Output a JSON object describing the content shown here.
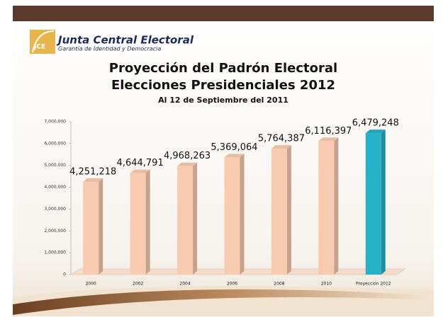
{
  "header": {
    "logo": "JCE",
    "title": "Junta Central Electoral",
    "subtitle": "Garantía de Identidad y Democracia"
  },
  "chart_data": {
    "type": "bar3d",
    "title": "Proyección del Padrón Electoral",
    "subtitle": "Elecciones Presidenciales 2012",
    "annotation": "Al 12 de Septiembre del 2011",
    "categories": [
      "2000",
      "2002",
      "2004",
      "2006",
      "2008",
      "2010",
      "Proyección  2012"
    ],
    "values": [
      4251218,
      4644791,
      4968263,
      5369064,
      5764387,
      6116397,
      6479248
    ],
    "value_labels": [
      "4,251,218",
      "4,644,791",
      "4,968,263",
      "5,369,064",
      "5,764,387",
      "6,116,397",
      "6,479,248"
    ],
    "colors": [
      "#f8cbb0",
      "#f8cbb0",
      "#f8cbb0",
      "#f8cbb0",
      "#f8cbb0",
      "#f8cbb0",
      "#27b2c8"
    ],
    "ylim": [
      0,
      7000000
    ],
    "yticks": [
      0,
      {
        "value": 1000000,
        "label": "1,000,000"
      },
      {
        "value": 2000000,
        "label": "2,000,000"
      },
      {
        "value": 3000000,
        "label": "3,000,000"
      },
      {
        "value": 4000000,
        "label": "4,000,000"
      },
      {
        "value": 5000000,
        "label": "5,000,000"
      },
      {
        "value": 6000000,
        "label": "6,000,000"
      },
      {
        "value": 7000000,
        "label": "7,000,000"
      }
    ],
    "grid": false
  }
}
